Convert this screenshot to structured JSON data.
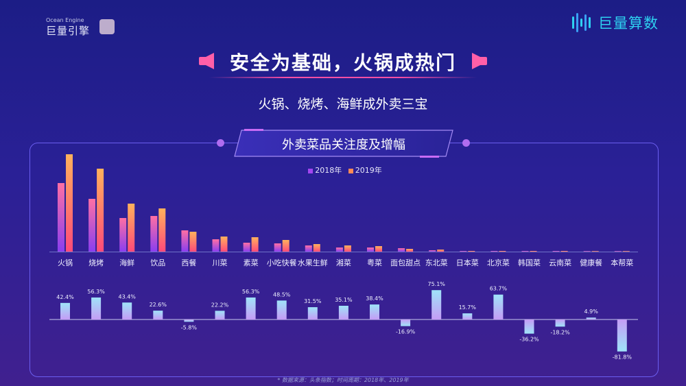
{
  "header": {
    "brand_left_en": "Ocean Engine",
    "brand_left_cn": "巨量引擎",
    "brand_right": "巨量算数"
  },
  "title": "安全为基础，火锅成热门",
  "subtitle": "火锅、烧烤、海鲜成外卖三宝",
  "banner": "外卖菜品关注度及增幅",
  "footnote": "* 数据来源：头条指数；时间周期：2018年、2019年",
  "colors": {
    "series_2018": "#a346f0",
    "series_2019": "#ff8a55",
    "growth_bar": "#9fd8f7",
    "panel_border": "#6b5ef0"
  },
  "chart_data": [
    {
      "type": "bar",
      "categories": [
        "火锅",
        "烧烤",
        "海鲜",
        "饮品",
        "西餐",
        "川菜",
        "素菜",
        "小吃快餐",
        "水果生鲜",
        "湘菜",
        "粤菜",
        "面包甜点",
        "东北菜",
        "日本菜",
        "北京菜",
        "韩国菜",
        "云南菜",
        "健康餐",
        "本帮菜"
      ],
      "series": [
        {
          "name": "2018年",
          "values": [
            100,
            77,
            49,
            52,
            31,
            18,
            13,
            12,
            9,
            6,
            6,
            5,
            2,
            1,
            1,
            1,
            1,
            0,
            0
          ]
        },
        {
          "name": "2019年",
          "values": [
            142,
            121,
            70,
            63,
            29,
            22,
            21,
            17,
            11,
            9,
            8,
            4,
            3,
            1,
            1,
            1,
            1,
            0,
            0
          ]
        }
      ],
      "legend": "top-center"
    },
    {
      "type": "bar",
      "categories": [
        "火锅",
        "烧烤",
        "海鲜",
        "饮品",
        "西餐",
        "川菜",
        "素菜",
        "小吃快餐",
        "水果生鲜",
        "湘菜",
        "粤菜",
        "面包甜点",
        "东北菜",
        "日本菜",
        "北京菜",
        "韩国菜",
        "云南菜",
        "健康餐",
        "本帮菜"
      ],
      "values": [
        42.4,
        56.3,
        43.4,
        22.6,
        -5.8,
        22.2,
        56.3,
        48.5,
        31.5,
        35.1,
        38.4,
        -16.9,
        75.1,
        15.7,
        63.7,
        -36.2,
        -18.2,
        4.9,
        -81.8
      ],
      "labels": [
        "42.4%",
        "56.3%",
        "43.4%",
        "22.6%",
        "-5.8%",
        "22.2%",
        "56.3%",
        "48.5%",
        "31.5%",
        "35.1%",
        "38.4%",
        "-16.9%",
        "75.1%",
        "15.7%",
        "63.7%",
        "-36.2%",
        "-18.2%",
        "4.9%",
        "-81.8%"
      ],
      "unit": "%"
    }
  ]
}
